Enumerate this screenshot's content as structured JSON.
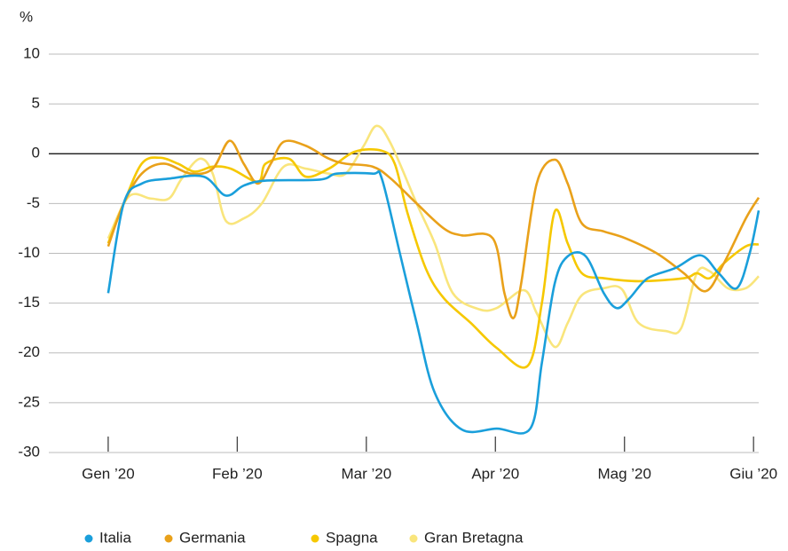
{
  "chart_data": {
    "type": "line",
    "y_label": "%",
    "xlim": [
      -0.46,
      5.04
    ],
    "ylim": [
      -30,
      10
    ],
    "xticks": [
      {
        "value": 0,
        "label": "Gen ’20"
      },
      {
        "value": 1,
        "label": "Feb ’20"
      },
      {
        "value": 2,
        "label": "Mar ’20"
      },
      {
        "value": 3,
        "label": "Apr ’20"
      },
      {
        "value": 4,
        "label": "Mag ’20"
      },
      {
        "value": 5,
        "label": "Giu ’20"
      }
    ],
    "yticks": [
      10,
      5,
      0,
      -5,
      -10,
      -15,
      -20,
      -25,
      -30
    ],
    "grid": true,
    "legend": "bottom",
    "series": [
      {
        "name": "Italia",
        "color": "#1a9fdb",
        "x": [
          0,
          0.12,
          0.26,
          0.47,
          0.74,
          0.91,
          1.05,
          1.22,
          1.64,
          1.77,
          2.05,
          2.12,
          2.26,
          2.39,
          2.53,
          2.74,
          3.01,
          3.27,
          3.36,
          3.46,
          3.56,
          3.7,
          3.84,
          3.94,
          4.04,
          4.18,
          4.39,
          4.59,
          4.73,
          4.87,
          4.97,
          5.04
        ],
        "values": [
          -14,
          -5,
          -3,
          -2.5,
          -2.3,
          -4.2,
          -3.2,
          -2.7,
          -2.6,
          -2,
          -2,
          -2.5,
          -10,
          -17,
          -24,
          -27.7,
          -27.6,
          -27.6,
          -21,
          -13,
          -10.3,
          -10.3,
          -14,
          -15.5,
          -14.5,
          -12.5,
          -11.5,
          -10.2,
          -12,
          -13.5,
          -10,
          -5.7
        ]
      },
      {
        "name": "Germania",
        "color": "#e9a11a",
        "x": [
          0,
          0.12,
          0.26,
          0.43,
          0.64,
          0.81,
          0.94,
          1.05,
          1.16,
          1.26,
          1.36,
          1.53,
          1.71,
          1.84,
          2.05,
          2.19,
          2.39,
          2.6,
          2.74,
          2.98,
          3.07,
          3.14,
          3.2,
          3.32,
          3.46,
          3.56,
          3.67,
          3.84,
          4.01,
          4.25,
          4.46,
          4.63,
          4.77,
          4.94,
          5.04
        ],
        "values": [
          -9.3,
          -5,
          -2,
          -1,
          -2,
          -1.5,
          1.3,
          -1,
          -3,
          -1,
          1.2,
          0.8,
          -0.5,
          -1,
          -1.3,
          -2.5,
          -5,
          -7.5,
          -8.2,
          -8.5,
          -14,
          -16.5,
          -13,
          -3,
          -0.6,
          -3,
          -7,
          -7.8,
          -8.5,
          -10,
          -12,
          -13.8,
          -11,
          -6.5,
          -4.4
        ]
      },
      {
        "name": "Spagna",
        "color": "#f6c800",
        "x": [
          0,
          0.12,
          0.26,
          0.4,
          0.54,
          0.67,
          0.81,
          0.95,
          1.16,
          1.22,
          1.4,
          1.53,
          1.71,
          1.91,
          2.12,
          2.22,
          2.32,
          2.46,
          2.6,
          2.81,
          3.01,
          3.25,
          3.36,
          3.46,
          3.56,
          3.67,
          3.84,
          4.11,
          4.46,
          4.56,
          4.66,
          4.77,
          4.94,
          5.04
        ],
        "values": [
          -9,
          -5,
          -1,
          -0.4,
          -1,
          -1.8,
          -1.3,
          -1.5,
          -2.8,
          -1,
          -0.5,
          -2.3,
          -1.5,
          0.2,
          0.3,
          -1,
          -6,
          -11.5,
          -14.5,
          -17,
          -19.5,
          -21.3,
          -15,
          -5.8,
          -9,
          -12,
          -12.5,
          -12.8,
          -12.5,
          -12,
          -12.5,
          -11,
          -9.3,
          -9.1
        ]
      },
      {
        "name": "Gran Bretagna",
        "color": "#f9e57c",
        "x": [
          0,
          0.16,
          0.33,
          0.47,
          0.57,
          0.71,
          0.81,
          0.91,
          1.05,
          1.19,
          1.36,
          1.53,
          1.71,
          1.84,
          1.98,
          2.08,
          2.19,
          2.39,
          2.53,
          2.67,
          2.87,
          3.01,
          3.22,
          3.32,
          3.46,
          3.56,
          3.67,
          3.84,
          3.98,
          4.11,
          4.32,
          4.44,
          4.56,
          4.66,
          4.8,
          4.94,
          5.04
        ],
        "values": [
          -8.5,
          -4.3,
          -4.5,
          -4.5,
          -2.5,
          -0.5,
          -2,
          -6.7,
          -6.5,
          -5,
          -1.3,
          -1.5,
          -2,
          -2,
          0.8,
          2.8,
          1,
          -5,
          -9,
          -14,
          -15.6,
          -15.5,
          -13.7,
          -16,
          -19.4,
          -17,
          -14.2,
          -13.5,
          -13.6,
          -17,
          -17.8,
          -17.5,
          -12,
          -11.8,
          -13.5,
          -13.5,
          -12.3
        ]
      }
    ]
  }
}
